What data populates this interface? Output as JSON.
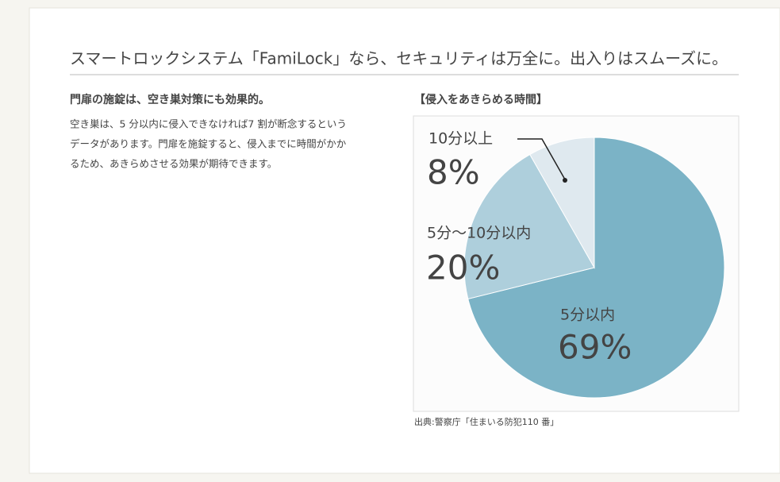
{
  "header": {
    "title": "スマートロックシステム「FamiLock」なら、セキュリティは万全に。出入りはスムーズに。"
  },
  "article": {
    "heading": "門扉の施錠は、空き巣対策にも効果的。",
    "lines": [
      "空き巣は、5 分以内に侵入できなければ7 割が断念するという",
      "データがあります。門扉を施錠すると、侵入までに時間がかか",
      "るため、あきらめさせる効果が期待できます。"
    ]
  },
  "chart_data": {
    "type": "pie",
    "title": "【侵入をあきらめる時間】",
    "categories": [
      "5分以内",
      "5分〜10分以内",
      "10分以上"
    ],
    "values": [
      69,
      20,
      8
    ],
    "value_labels": [
      "69%",
      "20%",
      "8%"
    ],
    "colors": [
      "#7bb3c6",
      "#aecfdc",
      "#dfe9ef"
    ],
    "source": "出典:警察庁「住まいる防犯110 番」"
  }
}
